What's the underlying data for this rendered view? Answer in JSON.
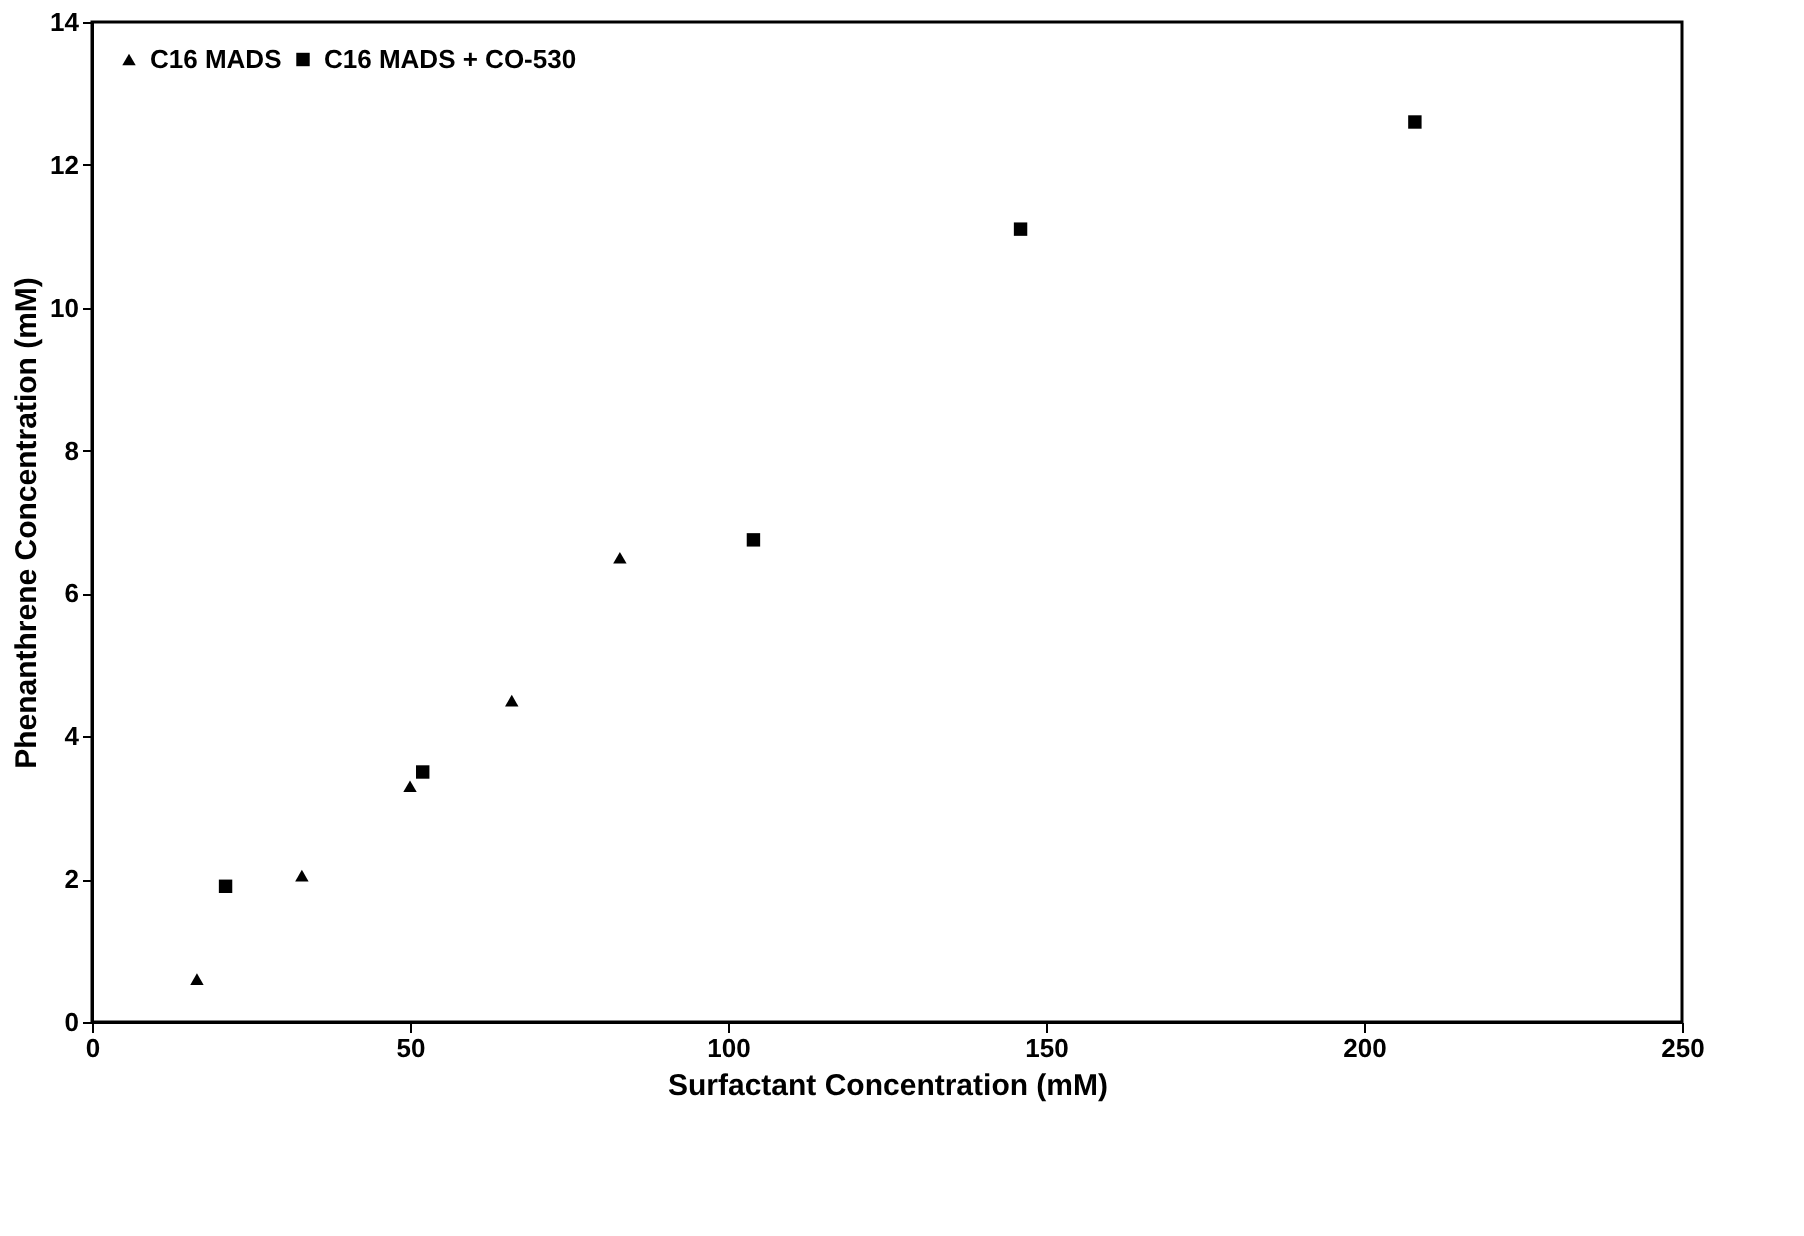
{
  "chart_data": {
    "type": "scatter",
    "xlabel": "Surfactant Concentration (mM)",
    "ylabel": "Phenanthrene Concentration (mM)",
    "series": [
      {
        "name": "C16 MADS",
        "color": "#000000",
        "marker": "triangle",
        "x": [
          16.5,
          33,
          50,
          66,
          83
        ],
        "values": [
          0.6,
          2.05,
          3.3,
          4.5,
          6.5
        ]
      },
      {
        "name": "C16 MADS + CO-530",
        "color": "#000000",
        "marker": "square",
        "x": [
          21,
          52,
          104,
          146,
          208
        ],
        "values": [
          1.9,
          3.5,
          6.75,
          11.1,
          12.6
        ]
      }
    ],
    "xlim": [
      0,
      250
    ],
    "xticks": [
      0,
      50,
      100,
      150,
      200,
      250
    ],
    "ylim": [
      0,
      14
    ],
    "yticks": [
      0,
      2,
      4,
      6,
      8,
      10,
      12,
      14
    ],
    "grid": false,
    "legend": "top left"
  }
}
